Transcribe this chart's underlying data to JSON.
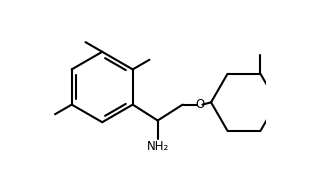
{
  "bg_color": "#ffffff",
  "bond_color": "#000000",
  "text_color": "#000000",
  "label_NH2": "NH₂",
  "label_O": "O",
  "figsize": [
    3.18,
    1.74
  ],
  "dpi": 100,
  "bond_lw": 1.5
}
